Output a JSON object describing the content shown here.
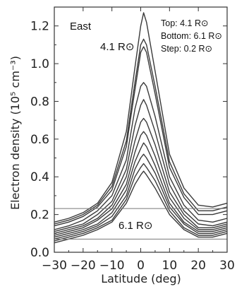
{
  "chart_data": {
    "type": "line",
    "xlabel": "Latitude (deg)",
    "ylabel": "Electron density (10⁵ cm⁻³)",
    "xlim": [
      -30,
      30
    ],
    "ylim": [
      0.0,
      1.3
    ],
    "x_ticks": [
      -30,
      -20,
      -10,
      0,
      10,
      20,
      30
    ],
    "x_tick_labels": [
      "−30",
      "−20",
      "−10",
      "0",
      "10",
      "20",
      "30"
    ],
    "y_ticks": [
      0.0,
      0.2,
      0.4,
      0.6,
      0.8,
      1.0,
      1.2
    ],
    "y_tick_labels": [
      "0.0",
      "0.2",
      "0.4",
      "0.6",
      "0.8",
      "1.0",
      "1.2"
    ],
    "reference_lines": [
      0.232,
      0.07
    ],
    "annotations": {
      "region": "East",
      "top": "Top: 4.1 R⊙",
      "bottom": "Bottom: 6.1 R⊙",
      "step": "Step: 0.2 R⊙",
      "top_curve_label": "4.1 R⊙",
      "bottom_curve_label": "6.1 R⊙"
    },
    "x": [
      -30,
      -25,
      -20,
      -15,
      -10,
      -5,
      -2,
      0,
      1,
      2,
      5,
      10,
      15,
      20,
      25,
      30
    ],
    "series": [
      {
        "values": [
          0.16,
          0.18,
          0.21,
          0.26,
          0.37,
          0.64,
          0.98,
          1.2,
          1.27,
          1.22,
          0.96,
          0.52,
          0.34,
          0.25,
          0.24,
          0.26
        ]
      },
      {
        "values": [
          0.15,
          0.17,
          0.2,
          0.25,
          0.35,
          0.59,
          0.9,
          1.1,
          1.13,
          1.1,
          0.88,
          0.48,
          0.31,
          0.22,
          0.22,
          0.24
        ]
      },
      {
        "values": [
          0.14,
          0.16,
          0.19,
          0.24,
          0.33,
          0.56,
          0.86,
          1.06,
          1.09,
          1.06,
          0.84,
          0.45,
          0.29,
          0.2,
          0.2,
          0.22
        ]
      },
      {
        "values": [
          0.12,
          0.14,
          0.17,
          0.22,
          0.3,
          0.49,
          0.76,
          0.88,
          0.9,
          0.88,
          0.72,
          0.4,
          0.25,
          0.17,
          0.16,
          0.18
        ]
      },
      {
        "values": [
          0.11,
          0.13,
          0.15,
          0.2,
          0.27,
          0.44,
          0.67,
          0.78,
          0.81,
          0.78,
          0.64,
          0.36,
          0.22,
          0.15,
          0.14,
          0.16
        ]
      },
      {
        "values": [
          0.1,
          0.12,
          0.14,
          0.18,
          0.25,
          0.4,
          0.59,
          0.69,
          0.71,
          0.69,
          0.57,
          0.32,
          0.2,
          0.13,
          0.13,
          0.15
        ]
      },
      {
        "values": [
          0.09,
          0.11,
          0.13,
          0.17,
          0.23,
          0.36,
          0.53,
          0.62,
          0.64,
          0.62,
          0.51,
          0.29,
          0.18,
          0.12,
          0.12,
          0.14
        ]
      },
      {
        "values": [
          0.08,
          0.1,
          0.12,
          0.15,
          0.21,
          0.33,
          0.48,
          0.55,
          0.58,
          0.56,
          0.46,
          0.26,
          0.16,
          0.11,
          0.11,
          0.13
        ]
      },
      {
        "values": [
          0.07,
          0.09,
          0.11,
          0.14,
          0.19,
          0.3,
          0.44,
          0.5,
          0.52,
          0.5,
          0.42,
          0.24,
          0.15,
          0.1,
          0.1,
          0.12
        ]
      },
      {
        "values": [
          0.06,
          0.08,
          0.1,
          0.13,
          0.17,
          0.28,
          0.4,
          0.45,
          0.47,
          0.45,
          0.38,
          0.22,
          0.13,
          0.09,
          0.09,
          0.11
        ]
      },
      {
        "values": [
          0.05,
          0.07,
          0.09,
          0.12,
          0.16,
          0.26,
          0.36,
          0.41,
          0.43,
          0.41,
          0.34,
          0.2,
          0.12,
          0.08,
          0.08,
          0.1
        ]
      }
    ]
  }
}
